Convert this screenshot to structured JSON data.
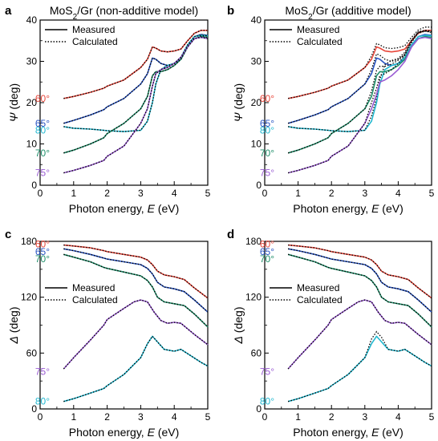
{
  "chart_data": [
    {
      "id": "a",
      "panel_letter": "a",
      "type": "line",
      "title": "MoS2/Gr (non-additive model)",
      "title_main": "MoS",
      "title_sub": "2",
      "title_rest": "/Gr (non-additive model)",
      "xlabel": "Photon energy, E (eV)",
      "xlabel_main": "Photon energy, ",
      "xlabel_var": "E",
      "xlabel_unit": " (eV)",
      "ylabel": "Ψ (deg)",
      "ylabel_var": "Ψ",
      "ylabel_unit": " (deg)",
      "xlim": [
        0,
        5
      ],
      "ylim": [
        0,
        40
      ],
      "xticks": [
        "0",
        "1",
        "2",
        "3",
        "4",
        "5"
      ],
      "yticks": [
        "0",
        "10",
        "20",
        "30",
        "40"
      ],
      "legend": {
        "position": "top-left",
        "entries": [
          "Measured",
          "Calculated"
        ]
      },
      "series": [
        {
          "angle": "60°",
          "color": "#e8473b",
          "label_y": 21,
          "x": [
            0.7,
            1.0,
            1.5,
            1.9,
            2.0,
            2.5,
            3.0,
            3.2,
            3.35,
            3.45,
            3.6,
            3.8,
            4.0,
            4.2,
            4.4,
            4.6,
            4.8,
            5.0
          ],
          "y": [
            21,
            21.5,
            22.5,
            23.5,
            24,
            25.5,
            28.5,
            30.5,
            33.5,
            33.2,
            32.5,
            32.3,
            32.5,
            33,
            35,
            36.8,
            37.5,
            37.5
          ]
        },
        {
          "angle": "65°",
          "color": "#2a55c4",
          "label_y": 15,
          "x": [
            0.7,
            1.0,
            1.5,
            1.9,
            2.0,
            2.5,
            3.0,
            3.2,
            3.35,
            3.45,
            3.6,
            3.8,
            4.0,
            4.2,
            4.4,
            4.6,
            4.8,
            5.0
          ],
          "y": [
            15,
            15.7,
            17,
            18.3,
            19,
            21,
            24.5,
            27,
            30.8,
            30.5,
            29.5,
            29,
            29.5,
            30.5,
            33.5,
            36,
            36.5,
            36.3
          ]
        },
        {
          "angle": "80°",
          "color": "#21b8d0",
          "label_y": 13.3,
          "x": [
            0.7,
            1.0,
            1.5,
            1.9,
            2.0,
            2.5,
            3.0,
            3.2,
            3.35,
            3.45,
            3.6,
            3.8,
            4.0,
            4.2,
            4.4,
            4.6,
            4.8,
            5.0
          ],
          "y": [
            14.2,
            13.8,
            13.6,
            13.3,
            13.2,
            13,
            13.3,
            15.5,
            20,
            24.5,
            28,
            29,
            29.5,
            31,
            34,
            36,
            36.3,
            36.2
          ]
        },
        {
          "angle": "70°",
          "color": "#1f8f6a",
          "label_y": 7.8,
          "x": [
            0.7,
            1.0,
            1.5,
            1.9,
            2.0,
            2.5,
            3.0,
            3.2,
            3.35,
            3.45,
            3.6,
            3.8,
            4.0,
            4.2,
            4.4,
            4.6,
            4.8,
            5.0
          ],
          "y": [
            7.8,
            8.5,
            10,
            11.5,
            12.5,
            15,
            18.5,
            21.5,
            26.5,
            27.5,
            27.5,
            28,
            29,
            30.5,
            33.5,
            35.5,
            36,
            35.8
          ]
        },
        {
          "angle": "75°",
          "color": "#9a5bd3",
          "label_y": 3,
          "x": [
            0.7,
            1.0,
            1.5,
            1.9,
            2.0,
            2.5,
            3.0,
            3.2,
            3.35,
            3.45,
            3.6,
            3.8,
            4.0,
            4.2,
            4.4,
            4.6,
            4.8,
            5.0
          ],
          "y": [
            3,
            3.6,
            4.8,
            6,
            7,
            9.5,
            15,
            18.5,
            24,
            27,
            28,
            28.5,
            29.5,
            31,
            33.5,
            35.5,
            35.8,
            35.5
          ]
        }
      ]
    },
    {
      "id": "b",
      "panel_letter": "b",
      "type": "line",
      "title": "MoS2/Gr (additive model)",
      "title_main": "MoS",
      "title_sub": "2",
      "title_rest": "/Gr (additive model)",
      "xlabel": "Photon energy, E (eV)",
      "xlabel_main": "Photon energy, ",
      "xlabel_var": "E",
      "xlabel_unit": " (eV)",
      "ylabel": "Ψ (deg)",
      "ylabel_var": "Ψ",
      "ylabel_unit": " (deg)",
      "xlim": [
        0,
        5
      ],
      "ylim": [
        0,
        40
      ],
      "xticks": [
        "0",
        "1",
        "2",
        "3",
        "4",
        "5"
      ],
      "yticks": [
        "0",
        "10",
        "20",
        "30",
        "40"
      ],
      "legend": {
        "position": "top-left",
        "entries": [
          "Measured",
          "Calculated"
        ]
      },
      "series": [
        {
          "angle": "60°",
          "color": "#e8473b",
          "label_y": 21,
          "x": [
            0.7,
            1.0,
            1.5,
            1.9,
            2.0,
            2.5,
            3.0,
            3.2,
            3.35,
            3.45,
            3.6,
            3.8,
            4.0,
            4.2,
            4.4,
            4.6,
            4.8,
            5.0
          ],
          "y": [
            21,
            21.5,
            22.5,
            23.5,
            24,
            25.5,
            28.5,
            30.5,
            33.5,
            33.2,
            32.5,
            32.3,
            32.5,
            33,
            35,
            36.8,
            37.5,
            37.5
          ],
          "calc_offset": 0.8
        },
        {
          "angle": "65°",
          "color": "#2a55c4",
          "label_y": 15,
          "x": [
            0.7,
            1.0,
            1.5,
            1.9,
            2.0,
            2.5,
            3.0,
            3.2,
            3.35,
            3.45,
            3.6,
            3.8,
            4.0,
            4.2,
            4.4,
            4.6,
            4.8,
            5.0
          ],
          "y": [
            15,
            15.7,
            17,
            18.3,
            19,
            21,
            24.5,
            27,
            30.8,
            30.5,
            29.5,
            29,
            29.5,
            30.5,
            33.5,
            36,
            36.5,
            36.3
          ],
          "calc_offset": 1.0
        },
        {
          "angle": "80°",
          "color": "#21b8d0",
          "label_y": 13.3,
          "x": [
            0.7,
            1.0,
            1.5,
            1.9,
            2.0,
            2.5,
            3.0,
            3.2,
            3.35,
            3.45,
            3.6,
            3.8,
            4.0,
            4.2,
            4.4,
            4.6,
            4.8,
            5.0
          ],
          "y": [
            14.2,
            13.8,
            13.6,
            13.3,
            13.2,
            13,
            13.3,
            15.5,
            20,
            24.5,
            28,
            29,
            29.5,
            31,
            34,
            36,
            36.3,
            36.2
          ],
          "calc_offset": 1.2
        },
        {
          "angle": "70°",
          "color": "#1f8f6a",
          "label_y": 7.8,
          "x": [
            0.7,
            1.0,
            1.5,
            1.9,
            2.0,
            2.5,
            3.0,
            3.2,
            3.35,
            3.45,
            3.6,
            3.8,
            4.0,
            4.2,
            4.4,
            4.6,
            4.8,
            5.0
          ],
          "y": [
            7.8,
            8.5,
            10,
            11.5,
            12.5,
            15,
            18.5,
            21.5,
            26.5,
            27.5,
            27.5,
            28,
            29,
            30.5,
            33.5,
            35.5,
            36,
            35.8
          ],
          "calc_offset": 1.3
        },
        {
          "angle": "75°",
          "color": "#9a5bd3",
          "label_y": 3,
          "x": [
            0.7,
            1.0,
            1.5,
            1.9,
            2.0,
            2.5,
            3.0,
            3.2,
            3.35,
            3.45,
            3.6,
            3.8,
            4.0,
            4.2,
            4.4,
            4.6,
            4.8,
            5.0
          ],
          "y": [
            3,
            3.6,
            4.8,
            6,
            7,
            9.5,
            15,
            18.5,
            22,
            25,
            25.5,
            26.5,
            28,
            30,
            33.5,
            35.5,
            35.8,
            35.5
          ],
          "calc_offset": 1.5
        }
      ]
    },
    {
      "id": "c",
      "panel_letter": "c",
      "type": "line",
      "title": "",
      "xlabel": "Photon energy, E (eV)",
      "xlabel_main": "Photon energy, ",
      "xlabel_var": "E",
      "xlabel_unit": " (eV)",
      "ylabel": "Δ (deg)",
      "ylabel_var": "Δ",
      "ylabel_unit": " (deg)",
      "xlim": [
        0,
        5
      ],
      "ylim": [
        0,
        180
      ],
      "xticks": [
        "0",
        "1",
        "2",
        "3",
        "4",
        "5"
      ],
      "yticks": [
        "0",
        "60",
        "120",
        "180"
      ],
      "legend": {
        "position": "center-left",
        "entries": [
          "Measured",
          "Calculated"
        ]
      },
      "series": [
        {
          "angle": "60°",
          "color": "#e8473b",
          "label_y": 177,
          "x": [
            0.7,
            1.0,
            1.5,
            1.9,
            2.0,
            2.5,
            3.0,
            3.2,
            3.35,
            3.5,
            3.7,
            4.0,
            4.3,
            4.6,
            5.0
          ],
          "y": [
            176,
            175,
            173,
            170,
            169,
            166,
            163,
            160,
            155,
            148,
            144,
            142,
            139,
            130,
            119
          ]
        },
        {
          "angle": "65°",
          "color": "#2a55c4",
          "label_y": 169,
          "x": [
            0.7,
            1.0,
            1.5,
            1.9,
            2.0,
            2.5,
            3.0,
            3.2,
            3.35,
            3.5,
            3.7,
            4.0,
            4.3,
            4.6,
            5.0
          ],
          "y": [
            172,
            170,
            166,
            162,
            161,
            158,
            155,
            151,
            145,
            136,
            131,
            129,
            126,
            117,
            104
          ]
        },
        {
          "angle": "70°",
          "color": "#1f8f6a",
          "label_y": 161,
          "x": [
            0.7,
            1.0,
            1.5,
            1.9,
            2.0,
            2.5,
            3.0,
            3.2,
            3.35,
            3.5,
            3.7,
            4.0,
            4.3,
            4.6,
            5.0
          ],
          "y": [
            166,
            163,
            158,
            152,
            151,
            147,
            143,
            138,
            131,
            120,
            115,
            113,
            111,
            102,
            88
          ]
        },
        {
          "angle": "75°",
          "color": "#9a5bd3",
          "label_y": 40,
          "x": [
            0.7,
            1.0,
            1.5,
            1.9,
            2.0,
            2.5,
            2.8,
            3.0,
            3.2,
            3.4,
            3.6,
            3.8,
            4.0,
            4.2,
            4.6,
            5.0
          ],
          "y": [
            43,
            55,
            74,
            90,
            96,
            108,
            115,
            117,
            115,
            104,
            95,
            92,
            93,
            92,
            80,
            69
          ]
        },
        {
          "angle": "80°",
          "color": "#21b8d0",
          "label_y": 8,
          "x": [
            0.7,
            1.0,
            1.5,
            1.9,
            2.0,
            2.5,
            3.0,
            3.2,
            3.35,
            3.5,
            3.7,
            4.0,
            4.2,
            4.5,
            4.8,
            5.0
          ],
          "y": [
            8,
            11,
            17,
            22,
            25,
            37,
            55,
            70,
            78,
            72,
            64,
            62,
            64,
            57,
            50,
            46
          ]
        }
      ]
    },
    {
      "id": "d",
      "panel_letter": "d",
      "type": "line",
      "title": "",
      "xlabel": "Photon energy, E (eV)",
      "xlabel_main": "Photon energy, ",
      "xlabel_var": "E",
      "xlabel_unit": " (eV)",
      "ylabel": "Δ (deg)",
      "ylabel_var": "Δ",
      "ylabel_unit": " (deg)",
      "xlim": [
        0,
        5
      ],
      "ylim": [
        0,
        180
      ],
      "xticks": [
        "0",
        "1",
        "2",
        "3",
        "4",
        "5"
      ],
      "yticks": [
        "0",
        "60",
        "120",
        "180"
      ],
      "legend": {
        "position": "center-left",
        "entries": [
          "Measured",
          "Calculated"
        ]
      },
      "series": [
        {
          "angle": "60°",
          "color": "#e8473b",
          "label_y": 177,
          "x": [
            0.7,
            1.0,
            1.5,
            1.9,
            2.0,
            2.5,
            3.0,
            3.2,
            3.35,
            3.5,
            3.7,
            4.0,
            4.3,
            4.6,
            5.0
          ],
          "y": [
            176,
            175,
            173,
            170,
            169,
            166,
            163,
            160,
            155,
            148,
            144,
            142,
            139,
            130,
            119
          ]
        },
        {
          "angle": "65°",
          "color": "#2a55c4",
          "label_y": 169,
          "x": [
            0.7,
            1.0,
            1.5,
            1.9,
            2.0,
            2.5,
            3.0,
            3.2,
            3.35,
            3.5,
            3.7,
            4.0,
            4.3,
            4.6,
            5.0
          ],
          "y": [
            172,
            170,
            166,
            162,
            161,
            158,
            155,
            151,
            145,
            136,
            131,
            129,
            126,
            117,
            104
          ]
        },
        {
          "angle": "70°",
          "color": "#1f8f6a",
          "label_y": 161,
          "x": [
            0.7,
            1.0,
            1.5,
            1.9,
            2.0,
            2.5,
            3.0,
            3.2,
            3.35,
            3.5,
            3.7,
            4.0,
            4.3,
            4.6,
            5.0
          ],
          "y": [
            166,
            163,
            158,
            152,
            151,
            147,
            143,
            138,
            131,
            120,
            115,
            113,
            111,
            102,
            88
          ]
        },
        {
          "angle": "75°",
          "color": "#9a5bd3",
          "label_y": 40,
          "x": [
            0.7,
            1.0,
            1.5,
            1.9,
            2.0,
            2.5,
            2.8,
            3.0,
            3.2,
            3.4,
            3.6,
            3.8,
            4.0,
            4.2,
            4.6,
            5.0
          ],
          "y": [
            43,
            55,
            74,
            90,
            96,
            108,
            115,
            117,
            115,
            104,
            95,
            92,
            93,
            92,
            80,
            69
          ]
        },
        {
          "angle": "80°",
          "color": "#21b8d0",
          "label_y": 8,
          "x": [
            0.7,
            1.0,
            1.5,
            1.9,
            2.0,
            2.5,
            3.0,
            3.2,
            3.35,
            3.5,
            3.7,
            4.0,
            4.2,
            4.5,
            4.8,
            5.0
          ],
          "y": [
            8,
            11,
            17,
            22,
            25,
            37,
            55,
            70,
            78,
            72,
            64,
            62,
            64,
            57,
            50,
            46
          ],
          "calc_peak_boost": 5
        }
      ]
    }
  ]
}
